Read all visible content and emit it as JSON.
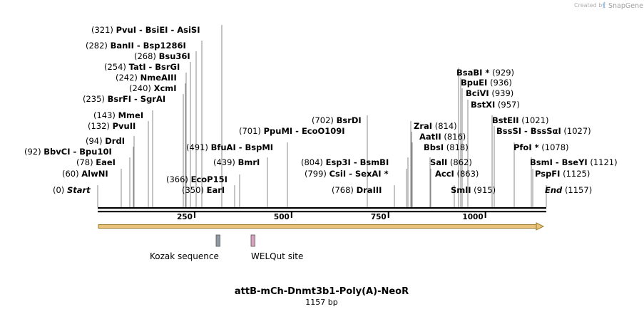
{
  "credit": {
    "prefix": "Created by",
    "brand": "SnapGene"
  },
  "map": {
    "title": "attB-mCh-Dnmt3b1-Poly(A)-NeoR",
    "length_label": "1157 bp",
    "length": 1157
  },
  "ruler_ticks": [
    {
      "bp": 250,
      "label": "250"
    },
    {
      "bp": 500,
      "label": "500"
    },
    {
      "bp": 750,
      "label": "750"
    },
    {
      "bp": 1000,
      "label": "1000"
    }
  ],
  "features": [
    {
      "name": "Kozak sequence",
      "color": "#8f9aa4",
      "start": 308,
      "end": 320
    },
    {
      "name": "WELQut site",
      "color": "#d9a3bf",
      "start": 398,
      "end": 410
    }
  ],
  "arrow": {
    "color": "#e9c27b",
    "border": "#9c7a2c"
  },
  "sites": [
    {
      "id": "start",
      "pos": "(0)",
      "names": [
        "Start"
      ],
      "cut": 0,
      "italic": true,
      "row": "L1"
    },
    {
      "id": "alwni",
      "pos": "(60)",
      "names": [
        "AlwNI"
      ],
      "cut": 60,
      "row": "L2"
    },
    {
      "id": "eaei",
      "pos": "(78)",
      "names": [
        "EaeI"
      ],
      "cut": 78,
      "row": "L3"
    },
    {
      "id": "bbvci",
      "pos": "(92)",
      "names": [
        "BbvCI",
        "Bpu10I"
      ],
      "cut": 92,
      "row": "L4"
    },
    {
      "id": "drdi",
      "pos": "(94)",
      "names": [
        "DrdI"
      ],
      "cut": 94,
      "row": "L5"
    },
    {
      "id": "pvuii",
      "pos": "(132)",
      "names": [
        "PvuII"
      ],
      "cut": 132,
      "row": "L6"
    },
    {
      "id": "mmei",
      "pos": "(143)",
      "names": [
        "MmeI"
      ],
      "cut": 143,
      "row": "L7"
    },
    {
      "id": "bsrfi",
      "pos": "(235)",
      "names": [
        "BsrFI",
        "SgrAI"
      ],
      "cut": 235,
      "row": "L8"
    },
    {
      "id": "xcmi",
      "pos": "(240)",
      "names": [
        "XcmI"
      ],
      "cut": 240,
      "row": "L9"
    },
    {
      "id": "nmeaiii",
      "pos": "(242)",
      "names": [
        "NmeAIII"
      ],
      "cut": 242,
      "row": "L10"
    },
    {
      "id": "tati",
      "pos": "(254)",
      "names": [
        "TatI",
        "BsrGI"
      ],
      "cut": 254,
      "row": "L11"
    },
    {
      "id": "bsu36i",
      "pos": "(268)",
      "names": [
        "Bsu36I"
      ],
      "cut": 268,
      "row": "L12"
    },
    {
      "id": "banii",
      "pos": "(282)",
      "names": [
        "BanII",
        "Bsp1286I"
      ],
      "cut": 282,
      "row": "L13"
    },
    {
      "id": "pvui",
      "pos": "(321)",
      "names": [
        "PvuI",
        "BsiEI",
        "AsiSI"
      ],
      "cut": 321,
      "row": "L14"
    },
    {
      "id": "eari",
      "pos": "(350)",
      "names": [
        "EarI"
      ],
      "cut": 350,
      "row": "M1"
    },
    {
      "id": "ecop15i",
      "pos": "(366)",
      "names": [
        "EcoP15I"
      ],
      "cut": 366,
      "row": "M2"
    },
    {
      "id": "bmri",
      "pos": "(439)",
      "names": [
        "BmrI"
      ],
      "cut": 439,
      "row": "M3"
    },
    {
      "id": "bfuai",
      "pos": "(491)",
      "names": [
        "BfuAI",
        "BspMI"
      ],
      "cut": 491,
      "row": "M4"
    },
    {
      "id": "ppumi",
      "pos": "(701)",
      "names": [
        "PpuMI",
        "EcoO109I"
      ],
      "cut": 701,
      "row": "M5"
    },
    {
      "id": "bsrdi",
      "pos": "(702)",
      "names": [
        "BsrDI"
      ],
      "cut": 702,
      "row": "M6"
    },
    {
      "id": "draiii",
      "pos": "(768)",
      "names": [
        "DraIII"
      ],
      "cut": 768,
      "row": "N1"
    },
    {
      "id": "csii",
      "pos": "(799)",
      "names": [
        "CsiI",
        "SexAI *"
      ],
      "cut": 799,
      "row": "N2"
    },
    {
      "id": "esp3i",
      "pos": "(804)",
      "names": [
        "Esp3I",
        "BsmBI"
      ],
      "cut": 804,
      "row": "N3"
    },
    {
      "id": "zrai",
      "pos": "(814)",
      "names": [
        "ZraI"
      ],
      "cut": 814,
      "row": "R1"
    },
    {
      "id": "aatii",
      "pos": "(816)",
      "names": [
        "AatII"
      ],
      "cut": 816,
      "row": "R2"
    },
    {
      "id": "bbsi",
      "pos": "(818)",
      "names": [
        "BbsI"
      ],
      "cut": 818,
      "row": "R3"
    },
    {
      "id": "sali",
      "pos": "(862)",
      "names": [
        "SalI"
      ],
      "cut": 862,
      "row": "R4"
    },
    {
      "id": "acci",
      "pos": "(863)",
      "names": [
        "AccI"
      ],
      "cut": 863,
      "row": "R5"
    },
    {
      "id": "smli",
      "pos": "(915)",
      "names": [
        "SmlI"
      ],
      "cut": 915,
      "row": "R6"
    },
    {
      "id": "bstxi",
      "pos": "(957)",
      "names": [
        "BstXI"
      ],
      "cut": 957,
      "row": "S1"
    },
    {
      "id": "bcivi",
      "pos": "(939)",
      "names": [
        "BciVI"
      ],
      "cut": 939,
      "row": "S2"
    },
    {
      "id": "bpuei",
      "pos": "(936)",
      "names": [
        "BpuEI"
      ],
      "cut": 936,
      "row": "S3"
    },
    {
      "id": "bsabi",
      "pos": "(929)",
      "names": [
        "BsaBI *"
      ],
      "cut": 929,
      "row": "S4"
    },
    {
      "id": "bsteii",
      "pos": "(1021)",
      "names": [
        "BstEII"
      ],
      "cut": 1021,
      "row": "T1"
    },
    {
      "id": "bsssi",
      "pos": "(1027)",
      "names": [
        "BssSI",
        "BssSαI"
      ],
      "cut": 1027,
      "row": "T2"
    },
    {
      "id": "pfoi",
      "pos": "(1078)",
      "names": [
        "PfoI *"
      ],
      "cut": 1078,
      "row": "T3"
    },
    {
      "id": "bsmi",
      "pos": "(1121)",
      "names": [
        "BsmI",
        "BseYI"
      ],
      "cut": 1121,
      "row": "T4"
    },
    {
      "id": "pspfi",
      "pos": "(1125)",
      "names": [
        "PspFI"
      ],
      "cut": 1125,
      "row": "T5"
    },
    {
      "id": "end",
      "pos": "(1157)",
      "names": [
        "End"
      ],
      "cut": 1157,
      "italic": true,
      "row": "T6"
    }
  ]
}
